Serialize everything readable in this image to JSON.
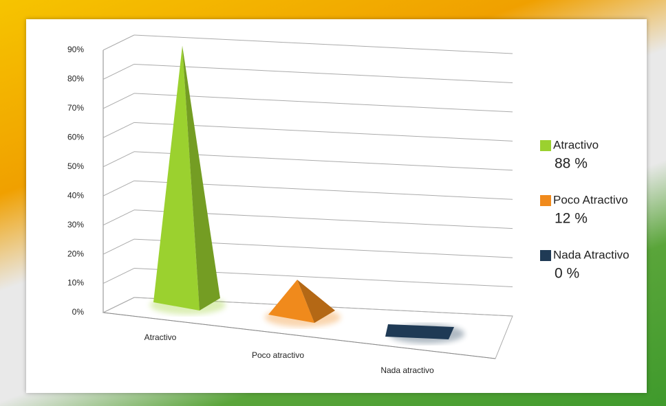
{
  "chart_data": {
    "type": "pyramid",
    "categories": [
      "Atractivo",
      "Poco atractivo",
      "Nada atractivo"
    ],
    "values": [
      88,
      12,
      0
    ],
    "colors": [
      "#9bd12f",
      "#f08a1c",
      "#1f3a55"
    ],
    "legend": [
      "Atractivo",
      "Poco Atractivo",
      "Nada Atractivo"
    ],
    "value_labels": [
      "88 %",
      "12 %",
      "0 %"
    ],
    "ylim": [
      0,
      90
    ],
    "yticks": [
      {
        "value": 0,
        "label": "0%"
      },
      {
        "value": 10,
        "label": "10%"
      },
      {
        "value": 20,
        "label": "20%"
      },
      {
        "value": 30,
        "label": "30%"
      },
      {
        "value": 40,
        "label": "40%"
      },
      {
        "value": 50,
        "label": "50%"
      },
      {
        "value": 60,
        "label": "60%"
      },
      {
        "value": 70,
        "label": "70%"
      },
      {
        "value": 80,
        "label": "80%"
      },
      {
        "value": 90,
        "label": "90%"
      }
    ],
    "grid": true
  }
}
